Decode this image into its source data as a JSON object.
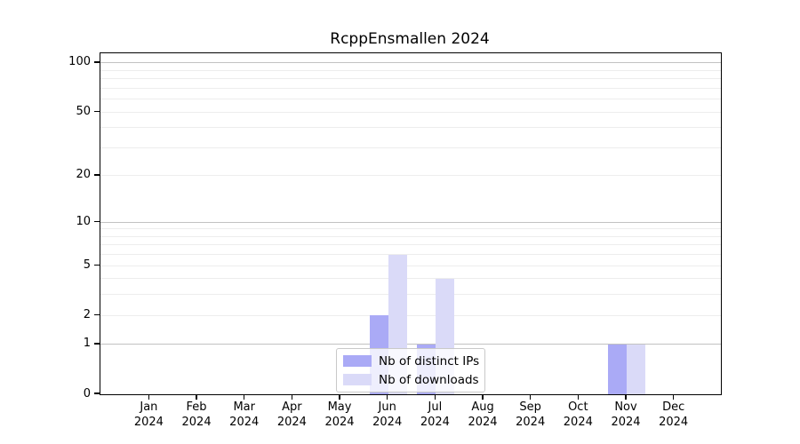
{
  "title": "RcppEnsmallen 2024",
  "colors": {
    "distinct_ips": "#aaaaf6",
    "downloads": "#dadaf8",
    "axis": "#000000",
    "grid_major": "#c2c2c2",
    "grid_minor": "#ededed",
    "legend_border": "#c9c9c9",
    "background": "#ffffff"
  },
  "legend": {
    "items": [
      {
        "label": "Nb of distinct IPs",
        "color": "#aaaaf6"
      },
      {
        "label": "Nb of downloads",
        "color": "#dadaf8"
      }
    ]
  },
  "chart_data": {
    "type": "bar",
    "title": "RcppEnsmallen 2024",
    "x_months": [
      "Jan",
      "Feb",
      "Mar",
      "Apr",
      "May",
      "Jun",
      "Jul",
      "Aug",
      "Sep",
      "Oct",
      "Nov",
      "Dec"
    ],
    "x_year": "2024",
    "series": [
      {
        "name": "Nb of distinct IPs",
        "color": "#aaaaf6",
        "values": [
          0,
          0,
          0,
          0,
          0,
          2,
          1,
          0,
          0,
          0,
          1,
          0
        ]
      },
      {
        "name": "Nb of downloads",
        "color": "#dadaf8",
        "values": [
          0,
          0,
          0,
          0,
          0,
          6,
          4,
          0,
          0,
          0,
          1,
          0
        ]
      }
    ],
    "y_scale": "log1p",
    "y_ticks": [
      0,
      1,
      2,
      5,
      10,
      20,
      50,
      100
    ],
    "y_grid_major": [
      1,
      10,
      100
    ],
    "y_grid_minor": [
      2,
      3,
      4,
      5,
      6,
      7,
      8,
      9,
      20,
      30,
      40,
      50,
      60,
      70,
      80,
      90
    ],
    "ylim": [
      0,
      115
    ],
    "grid": "horizontal",
    "legend_position": "bottom-center"
  }
}
